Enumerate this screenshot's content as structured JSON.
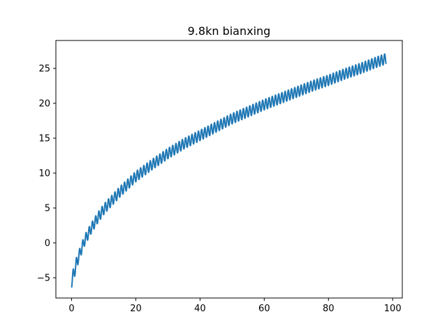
{
  "chart_data": {
    "type": "line",
    "title": "9.8kn bianxing",
    "xlabel": "",
    "ylabel": "",
    "xlim": [
      -4.9,
      103.0
    ],
    "ylim": [
      -7.9,
      29.0
    ],
    "xticks": [
      0,
      20,
      40,
      60,
      80,
      100
    ],
    "yticks": [
      -5,
      0,
      5,
      10,
      15,
      20,
      25
    ],
    "xtick_labels": [
      "0",
      "20",
      "40",
      "60",
      "80",
      "100"
    ],
    "ytick_labels": [
      "−5",
      "0",
      "5",
      "10",
      "15",
      "20",
      "25"
    ],
    "grid": false,
    "legend": "none",
    "series": [
      {
        "color": "#1f77b4",
        "x_start": 0,
        "x_end": 98,
        "oscillation_period": 1.0,
        "oscillation_amplitude": 0.75,
        "trend_points": [
          [
            0,
            -5.5
          ],
          [
            2,
            -2.2
          ],
          [
            4,
            0.3
          ],
          [
            6,
            2.0
          ],
          [
            8,
            3.5
          ],
          [
            10,
            4.8
          ],
          [
            15,
            7.3
          ],
          [
            20,
            9.5
          ],
          [
            25,
            11.2
          ],
          [
            30,
            12.8
          ],
          [
            35,
            14.2
          ],
          [
            40,
            15.4
          ],
          [
            45,
            16.6
          ],
          [
            50,
            17.8
          ],
          [
            55,
            18.8
          ],
          [
            60,
            19.8
          ],
          [
            65,
            20.7
          ],
          [
            70,
            21.6
          ],
          [
            75,
            22.5
          ],
          [
            80,
            23.3
          ],
          [
            85,
            24.2
          ],
          [
            90,
            25.0
          ],
          [
            95,
            25.9
          ],
          [
            98,
            26.4
          ]
        ]
      }
    ]
  }
}
